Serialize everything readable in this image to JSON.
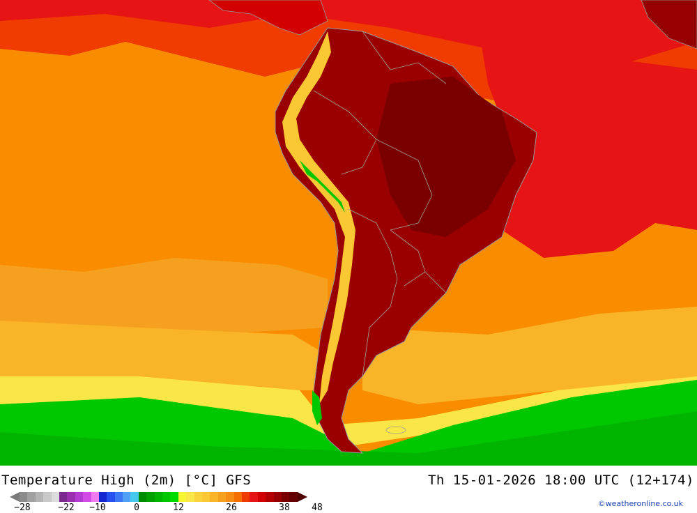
{
  "title": "Temperature High (2m) [°C] GFS",
  "datetime": "Th 15-01-2026 18:00 UTC (12+174)",
  "credit": "©weatheronline.co.uk",
  "legend": {
    "ticks": [
      "-28",
      "-22",
      "-10",
      "0",
      "12",
      "26",
      "38",
      "48"
    ],
    "colors": [
      "#8c8c8c",
      "#a0a0a0",
      "#b4b4b4",
      "#c8c8c8",
      "#dcdcdc",
      "#7a2a8c",
      "#9a2fb0",
      "#b43cd2",
      "#d24be6",
      "#f07af0",
      "#1428d2",
      "#2850f0",
      "#3c78f5",
      "#50a0f5",
      "#46c8f0",
      "#008c00",
      "#00a000",
      "#00b400",
      "#00c800",
      "#00dc00",
      "#f5f532",
      "#fae646",
      "#fad23c",
      "#fac832",
      "#fab428",
      "#f5a01e",
      "#f58c14",
      "#f56e00",
      "#f03c00",
      "#e61414",
      "#d20000",
      "#b40000",
      "#960000",
      "#7a0000",
      "#640000"
    ]
  },
  "colors": {
    "ocean_orange": "#f5a01e",
    "land_deep_red": "#9a0000"
  }
}
